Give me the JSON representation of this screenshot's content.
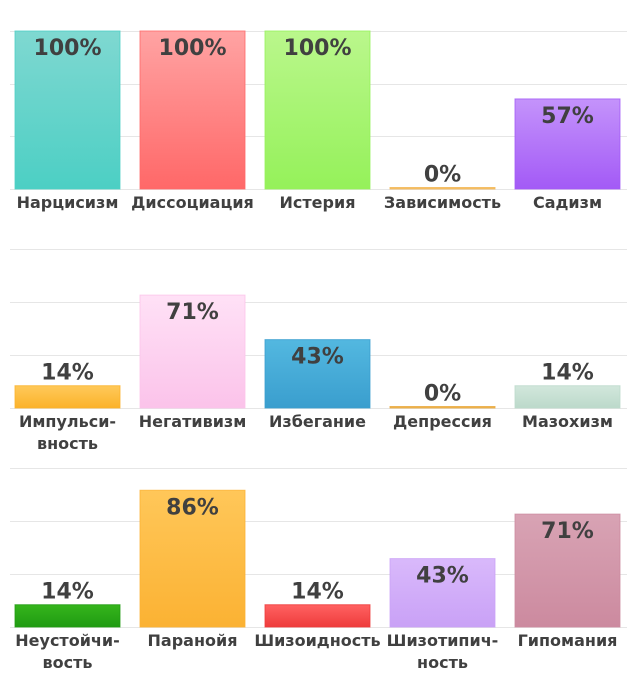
{
  "chart_data": {
    "type": "bar",
    "ylim": [
      0,
      100
    ],
    "value_suffix": "%",
    "grid": true,
    "rows": [
      {
        "categories": [
          [
            "Нарцисизм"
          ],
          [
            "Диссоциация"
          ],
          [
            "Истерия"
          ],
          [
            "Зависимость"
          ],
          [
            "Садизм"
          ]
        ],
        "values": [
          100,
          100,
          100,
          0,
          57
        ],
        "labels": [
          "100%",
          "100%",
          "100%",
          "0%",
          "57%"
        ],
        "colors": [
          [
            "#7fd8d1",
            "#4ccfc4"
          ],
          [
            "#ffa3a3",
            "#ff6868"
          ],
          [
            "#baf78c",
            "#95f15a"
          ],
          [
            "#f7cf8a",
            "#f3b553"
          ],
          [
            "#c493fb",
            "#a35af6"
          ]
        ]
      },
      {
        "categories": [
          [
            "Импульси-",
            "вность"
          ],
          [
            "Негативизм"
          ],
          [
            "Избегание"
          ],
          [
            "Депрессия"
          ],
          [
            "Мазохизм"
          ]
        ],
        "values": [
          14,
          71,
          43,
          0,
          14
        ],
        "labels": [
          "14%",
          "71%",
          "43%",
          "0%",
          "14%"
        ],
        "colors": [
          [
            "#ffc95a",
            "#fbb22a"
          ],
          [
            "#ffe1f6",
            "#fbc3ea"
          ],
          [
            "#53b8e0",
            "#3a9ece"
          ],
          [
            "#f7c66e",
            "#e8a83c"
          ],
          [
            "#d2e7dc",
            "#bcd9ca"
          ]
        ]
      },
      {
        "categories": [
          [
            "Неустойчи-",
            "вость"
          ],
          [
            "Паранойя"
          ],
          [
            "Шизоидность"
          ],
          [
            "Шизотипич-",
            "ность"
          ],
          [
            "Гипомания"
          ]
        ],
        "values": [
          14,
          86,
          14,
          43,
          71
        ],
        "labels": [
          "14%",
          "86%",
          "14%",
          "43%",
          "71%"
        ],
        "colors": [
          [
            "#36b51c",
            "#209b12"
          ],
          [
            "#ffc759",
            "#fbb233"
          ],
          [
            "#ff6262",
            "#ee3b3b"
          ],
          [
            "#d9b9fb",
            "#c9a1f6"
          ],
          [
            "#d8a3b4",
            "#cc8a9f"
          ]
        ]
      }
    ]
  }
}
